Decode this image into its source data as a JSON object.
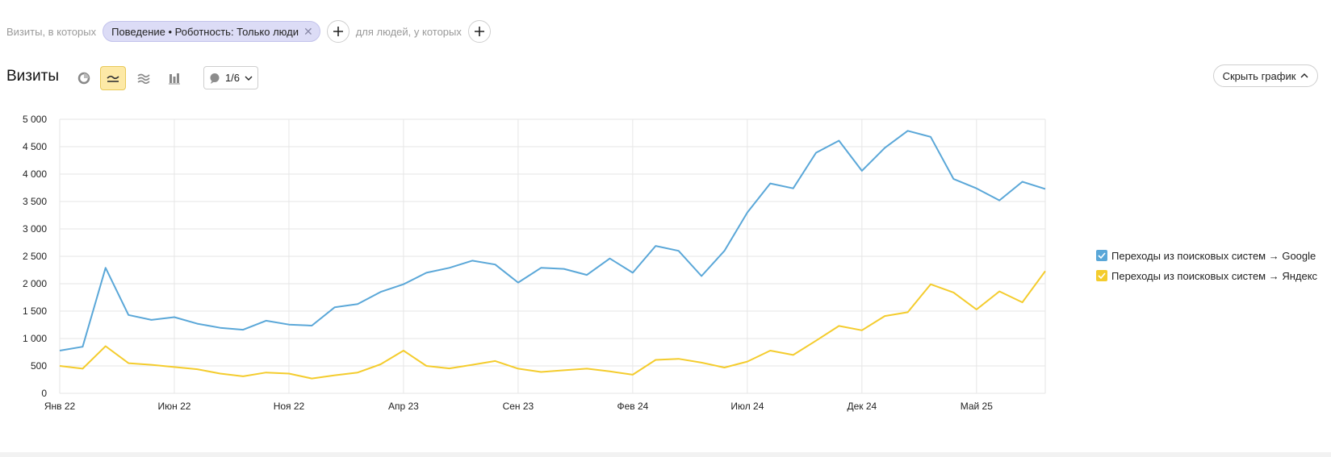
{
  "filters": {
    "prefix": "Визиты, в которых",
    "chip_label": "Поведение • Роботность: Только люди",
    "people_label": "для людей, у которых"
  },
  "toolbar": {
    "title": "Визиты",
    "notes_label": "1/6",
    "hide_chart_label": "Скрыть график"
  },
  "colors": {
    "google": "#5aa7d8",
    "yandex": "#f4cc2d",
    "grid": "#e6e6e6",
    "active_tool": "#fde9a6"
  },
  "chart_data": {
    "type": "line",
    "x": [
      "Янв 22",
      "Фев 22",
      "Мар 22",
      "Апр 22",
      "Май 22",
      "Июн 22",
      "Июл 22",
      "Авг 22",
      "Сен 22",
      "Окт 22",
      "Ноя 22",
      "Дек 22",
      "Янв 23",
      "Фев 23",
      "Мар 23",
      "Апр 23",
      "Май 23",
      "Июн 23",
      "Июл 23",
      "Авг 23",
      "Сен 23",
      "Окт 23",
      "Ноя 23",
      "Дек 23",
      "Янв 24",
      "Фев 24",
      "Мар 24",
      "Апр 24",
      "Май 24",
      "Июн 24",
      "Июл 24",
      "Авг 24",
      "Сен 24",
      "Окт 24",
      "Ноя 24",
      "Дек 24",
      "Янв 25",
      "Фев 25",
      "Мар 25",
      "Апр 25",
      "Май 25",
      "Июн 25",
      "Июл 25",
      "Авг 25"
    ],
    "xticks": [
      "Янв 22",
      "Июн 22",
      "Ноя 22",
      "Апр 23",
      "Сен 23",
      "Фев 24",
      "Июл 24",
      "Дек 24",
      "Май 25"
    ],
    "yticks": [
      "0",
      "500",
      "1 000",
      "1 500",
      "2 000",
      "2 500",
      "3 000",
      "3 500",
      "4 000",
      "4 500",
      "5 000"
    ],
    "ylim": [
      0,
      5000
    ],
    "grid": true,
    "series": [
      {
        "name": "Переходы из поисковых систем → Google",
        "values": [
          780,
          850,
          2290,
          1430,
          1340,
          1390,
          1270,
          1195,
          1160,
          1325,
          1255,
          1235,
          1570,
          1630,
          1850,
          1990,
          2200,
          2290,
          2420,
          2350,
          2020,
          2290,
          2270,
          2160,
          2460,
          2200,
          2690,
          2600,
          2140,
          2600,
          3300,
          3830,
          3740,
          4390,
          4610,
          4060,
          4480,
          4790,
          4680,
          3910,
          3740,
          3520,
          3860,
          3730
        ]
      },
      {
        "name": "Переходы из поисковых систем → Яндекс",
        "values": [
          500,
          450,
          860,
          550,
          520,
          480,
          440,
          360,
          310,
          380,
          360,
          270,
          330,
          380,
          530,
          780,
          500,
          455,
          520,
          590,
          450,
          390,
          420,
          450,
          400,
          340,
          610,
          630,
          560,
          470,
          580,
          780,
          700,
          960,
          1230,
          1150,
          1410,
          1480,
          1990,
          1840,
          1530,
          1860,
          1660,
          2230
        ]
      }
    ]
  }
}
